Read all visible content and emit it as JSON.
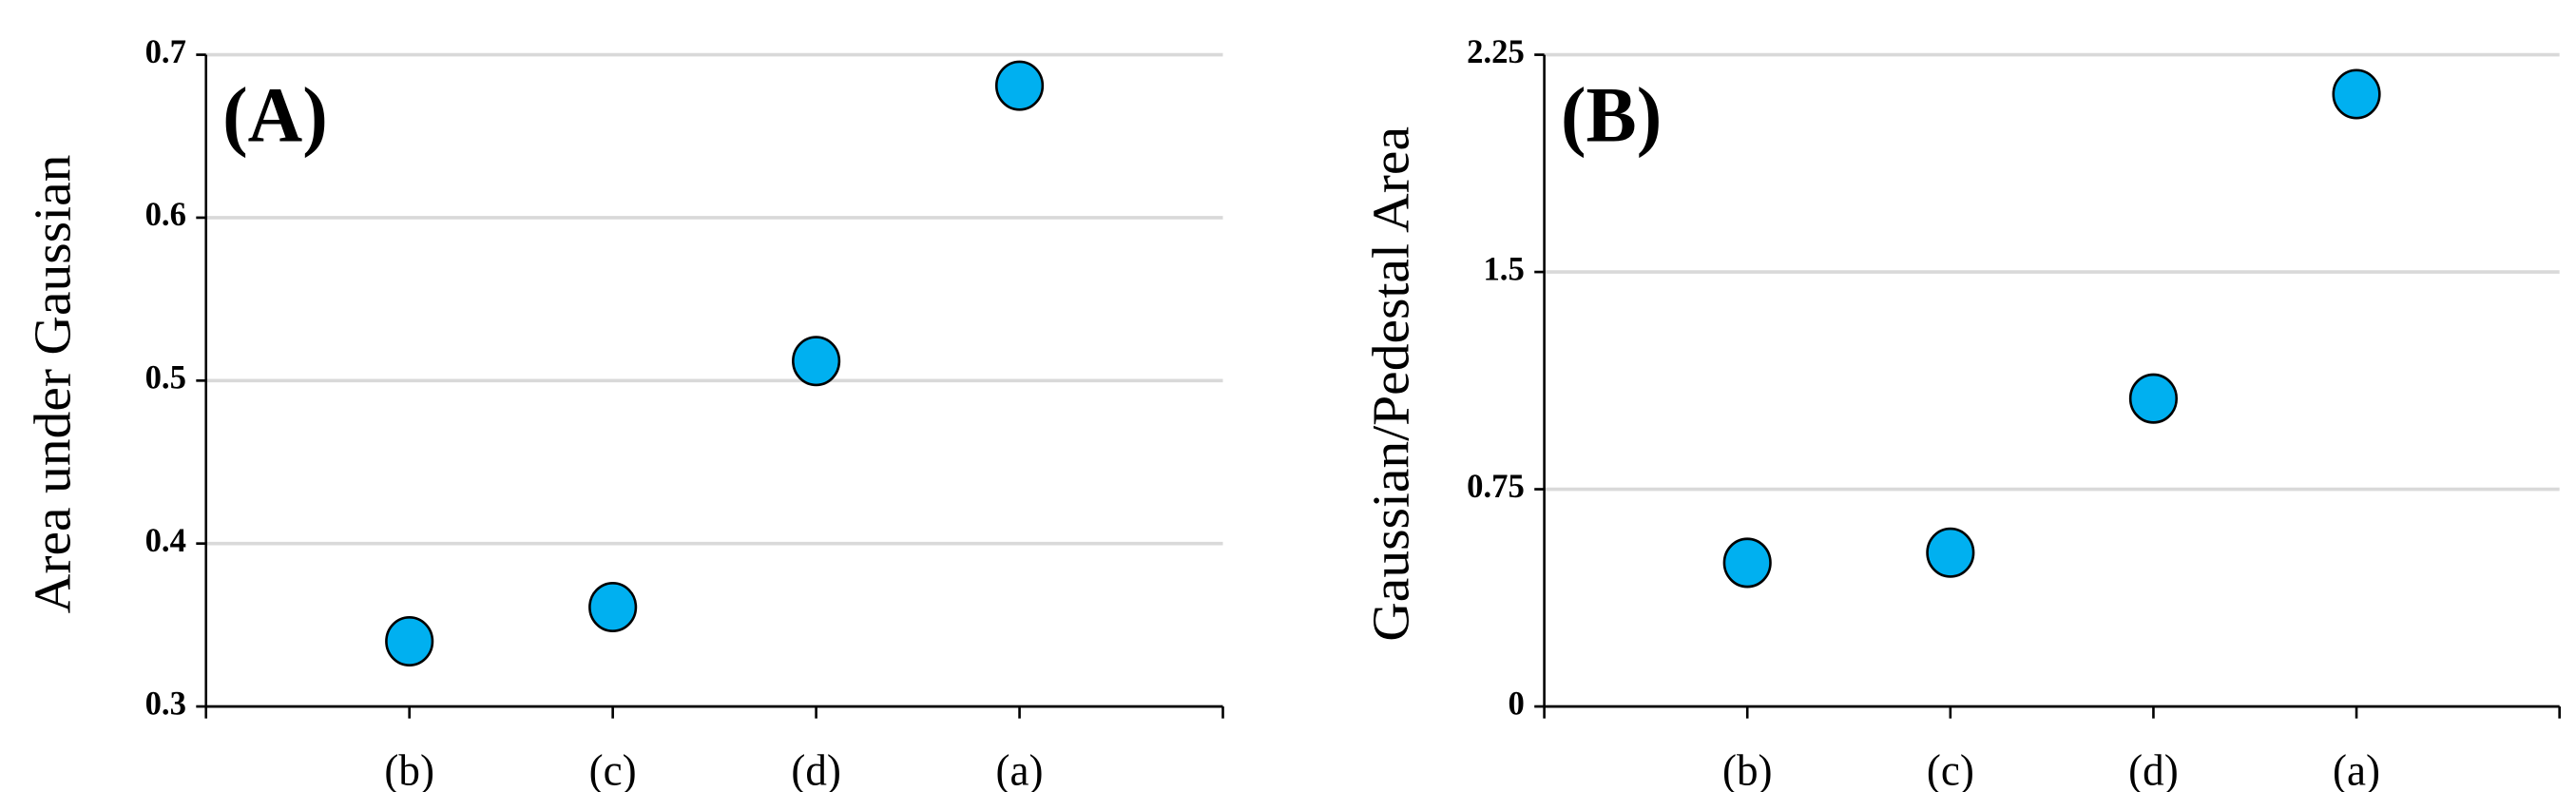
{
  "chart_data": [
    {
      "type": "scatter",
      "label": "(A)",
      "ylabel": "Area under Gaussian",
      "categories": [
        "(b)",
        "(c)",
        "(d)",
        "(a)"
      ],
      "values": [
        0.34,
        0.361,
        0.512,
        0.681
      ],
      "color": "#00b0f0",
      "ylim": [
        0.3,
        0.7
      ],
      "yticks": [
        0.3,
        0.4,
        0.5,
        0.6,
        0.7
      ],
      "grid": true
    },
    {
      "type": "scatter",
      "label": "(B)",
      "ylabel": "Gaussian/Pedestal Area",
      "categories": [
        "(b)",
        "(c)",
        "(d)",
        "(a)"
      ],
      "values": [
        0.496,
        0.531,
        1.063,
        2.114
      ],
      "color": "#00b0f0",
      "ylim": [
        0,
        2.25
      ],
      "yticks": [
        0,
        0.75,
        1.5,
        2.25
      ],
      "grid": true
    }
  ]
}
